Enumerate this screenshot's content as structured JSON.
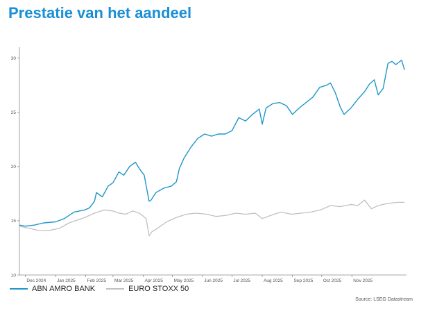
{
  "title": "Prestatie van het aandeel",
  "source": "Source: LSEG Datastream",
  "chart_data": {
    "type": "line",
    "title": "",
    "xlabel": "",
    "ylabel": "",
    "ylim": [
      10,
      31
    ],
    "yticks": [
      10,
      15,
      20,
      25,
      30
    ],
    "x_ticks": [
      "Dec 2024",
      "Jan 2025",
      "Feb 2025",
      "Mar 2025",
      "Apr 2025",
      "May 2025",
      "Jun 2025",
      "Jul 2025",
      "Aug 2025",
      "Sep 2025",
      "Oct 2025",
      "Nov 2025"
    ],
    "grid": false,
    "legend": "bottom-left",
    "series": [
      {
        "name": "ABN AMRO BANK",
        "color": "#1f96c8",
        "points": [
          [
            "2024-11-25",
            14.6
          ],
          [
            "2024-12-01",
            14.5
          ],
          [
            "2024-12-10",
            14.6
          ],
          [
            "2024-12-20",
            14.8
          ],
          [
            "2025-01-01",
            14.9
          ],
          [
            "2025-01-10",
            15.2
          ],
          [
            "2025-01-20",
            15.8
          ],
          [
            "2025-01-31",
            16.0
          ],
          [
            "2025-02-05",
            16.2
          ],
          [
            "2025-02-10",
            16.8
          ],
          [
            "2025-02-12",
            17.6
          ],
          [
            "2025-02-18",
            17.2
          ],
          [
            "2025-02-24",
            18.2
          ],
          [
            "2025-03-01",
            18.5
          ],
          [
            "2025-03-07",
            19.5
          ],
          [
            "2025-03-12",
            19.2
          ],
          [
            "2025-03-18",
            20.0
          ],
          [
            "2025-03-24",
            20.4
          ],
          [
            "2025-03-28",
            19.8
          ],
          [
            "2025-04-02",
            19.2
          ],
          [
            "2025-04-07",
            16.8
          ],
          [
            "2025-04-09",
            16.9
          ],
          [
            "2025-04-14",
            17.6
          ],
          [
            "2025-04-22",
            18.0
          ],
          [
            "2025-04-30",
            18.2
          ],
          [
            "2025-05-05",
            18.6
          ],
          [
            "2025-05-08",
            19.8
          ],
          [
            "2025-05-13",
            20.8
          ],
          [
            "2025-05-20",
            21.8
          ],
          [
            "2025-05-27",
            22.6
          ],
          [
            "2025-06-03",
            23.0
          ],
          [
            "2025-06-10",
            22.8
          ],
          [
            "2025-06-17",
            23.0
          ],
          [
            "2025-06-24",
            23.0
          ],
          [
            "2025-07-01",
            23.3
          ],
          [
            "2025-07-08",
            24.5
          ],
          [
            "2025-07-15",
            24.2
          ],
          [
            "2025-07-22",
            24.8
          ],
          [
            "2025-07-29",
            25.3
          ],
          [
            "2025-08-01",
            23.9
          ],
          [
            "2025-08-05",
            25.4
          ],
          [
            "2025-08-12",
            25.8
          ],
          [
            "2025-08-19",
            25.9
          ],
          [
            "2025-08-26",
            25.6
          ],
          [
            "2025-09-01",
            24.8
          ],
          [
            "2025-09-08",
            25.4
          ],
          [
            "2025-09-15",
            25.9
          ],
          [
            "2025-09-22",
            26.4
          ],
          [
            "2025-09-29",
            27.3
          ],
          [
            "2025-10-06",
            27.5
          ],
          [
            "2025-10-10",
            27.7
          ],
          [
            "2025-10-15",
            26.8
          ],
          [
            "2025-10-20",
            25.5
          ],
          [
            "2025-10-24",
            24.8
          ],
          [
            "2025-10-31",
            25.4
          ],
          [
            "2025-11-07",
            26.2
          ],
          [
            "2025-11-14",
            26.9
          ],
          [
            "2025-11-19",
            27.6
          ],
          [
            "2025-11-24",
            28.0
          ],
          [
            "2025-11-28",
            26.6
          ],
          [
            "2025-12-03",
            27.2
          ],
          [
            "2025-12-08",
            29.5
          ],
          [
            "2025-12-12",
            29.7
          ],
          [
            "2025-12-16",
            29.4
          ],
          [
            "2025-12-22",
            29.8
          ],
          [
            "2025-12-25",
            28.9
          ]
        ]
      },
      {
        "name": "EURO STOXX 50",
        "color": "#c0c0c0",
        "points": [
          [
            "2024-11-25",
            14.5
          ],
          [
            "2024-12-05",
            14.3
          ],
          [
            "2024-12-15",
            14.1
          ],
          [
            "2024-12-25",
            14.1
          ],
          [
            "2025-01-05",
            14.3
          ],
          [
            "2025-01-15",
            14.8
          ],
          [
            "2025-01-31",
            15.3
          ],
          [
            "2025-02-10",
            15.7
          ],
          [
            "2025-02-20",
            16.0
          ],
          [
            "2025-03-01",
            15.9
          ],
          [
            "2025-03-07",
            15.7
          ],
          [
            "2025-03-14",
            15.6
          ],
          [
            "2025-03-21",
            15.9
          ],
          [
            "2025-03-28",
            15.7
          ],
          [
            "2025-04-04",
            15.2
          ],
          [
            "2025-04-07",
            13.6
          ],
          [
            "2025-04-10",
            14.0
          ],
          [
            "2025-04-14",
            14.2
          ],
          [
            "2025-04-25",
            14.9
          ],
          [
            "2025-05-05",
            15.3
          ],
          [
            "2025-05-15",
            15.6
          ],
          [
            "2025-05-25",
            15.7
          ],
          [
            "2025-06-05",
            15.6
          ],
          [
            "2025-06-15",
            15.4
          ],
          [
            "2025-06-25",
            15.5
          ],
          [
            "2025-07-05",
            15.7
          ],
          [
            "2025-07-15",
            15.6
          ],
          [
            "2025-07-25",
            15.7
          ],
          [
            "2025-08-01",
            15.2
          ],
          [
            "2025-08-10",
            15.5
          ],
          [
            "2025-08-20",
            15.8
          ],
          [
            "2025-08-31",
            15.6
          ],
          [
            "2025-09-10",
            15.7
          ],
          [
            "2025-09-20",
            15.8
          ],
          [
            "2025-09-30",
            16.0
          ],
          [
            "2025-10-10",
            16.4
          ],
          [
            "2025-10-20",
            16.3
          ],
          [
            "2025-10-31",
            16.5
          ],
          [
            "2025-11-07",
            16.4
          ],
          [
            "2025-11-14",
            16.9
          ],
          [
            "2025-11-21",
            16.1
          ],
          [
            "2025-11-28",
            16.4
          ],
          [
            "2025-12-08",
            16.6
          ],
          [
            "2025-12-18",
            16.7
          ],
          [
            "2025-12-25",
            16.7
          ]
        ]
      }
    ]
  }
}
